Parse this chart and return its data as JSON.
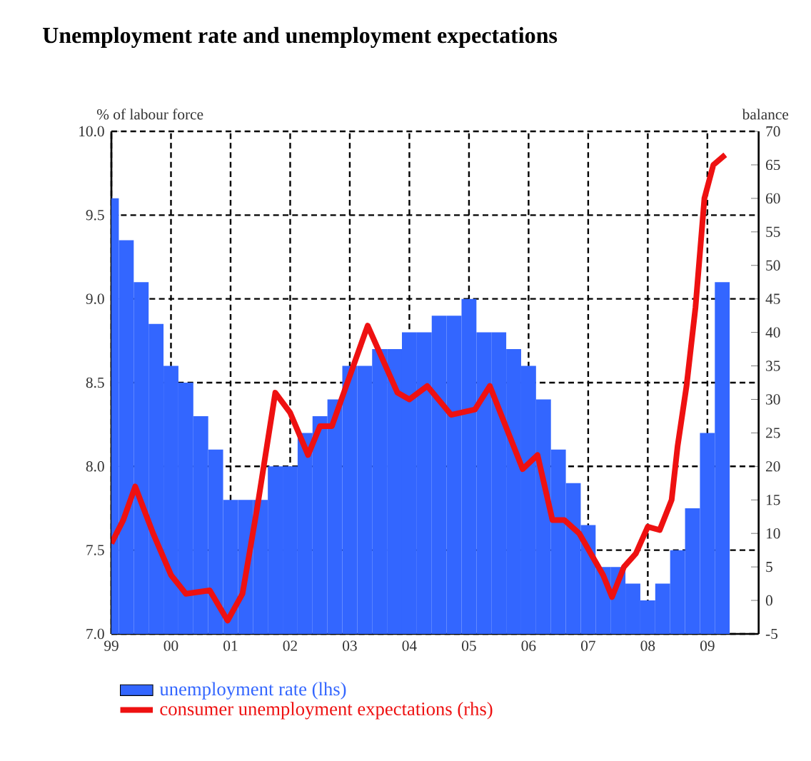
{
  "chart_data": {
    "type": "bar",
    "title": "Unemployment rate and unemployment expectations",
    "ylabel": "% of labour force",
    "y2label": "balance",
    "xlim": [
      1999,
      2009.86
    ],
    "xticks": [
      {
        "value": 1999,
        "label": "99"
      },
      {
        "value": 2000,
        "label": "00"
      },
      {
        "value": 2001,
        "label": "01"
      },
      {
        "value": 2002,
        "label": "02"
      },
      {
        "value": 2003,
        "label": "03"
      },
      {
        "value": 2004,
        "label": "04"
      },
      {
        "value": 2005,
        "label": "05"
      },
      {
        "value": 2006,
        "label": "06"
      },
      {
        "value": 2007,
        "label": "07"
      },
      {
        "value": 2008,
        "label": "08"
      },
      {
        "value": 2009,
        "label": "09"
      }
    ],
    "ylim": [
      7,
      10
    ],
    "yticks": [
      {
        "value": 7,
        "label": "7.0"
      },
      {
        "value": 7.5,
        "label": "7.5"
      },
      {
        "value": 8,
        "label": "8.0"
      },
      {
        "value": 8.5,
        "label": "8.5"
      },
      {
        "value": 9,
        "label": "9.0"
      },
      {
        "value": 9.5,
        "label": "9.5"
      },
      {
        "value": 10,
        "label": "10.0"
      }
    ],
    "y2lim": [
      -5,
      70
    ],
    "y2ticks": [
      -5,
      0,
      5,
      10,
      15,
      20,
      25,
      30,
      35,
      40,
      45,
      50,
      55,
      60,
      65,
      70
    ],
    "grid": true,
    "legend": "bottom",
    "series": [
      {
        "name": "unemployment rate (lhs)",
        "color": "#3366ff",
        "x": [
          1999,
          1999.25,
          1999.5,
          1999.75,
          2000,
          2000.25,
          2000.5,
          2000.75,
          2001,
          2001.25,
          2001.5,
          2001.75,
          2002,
          2002.25,
          2002.5,
          2002.75,
          2003,
          2003.25,
          2003.5,
          2003.75,
          2004,
          2004.25,
          2004.5,
          2004.75,
          2005,
          2005.25,
          2005.5,
          2005.75,
          2006,
          2006.25,
          2006.5,
          2006.75,
          2007,
          2007.25,
          2007.5,
          2007.75,
          2008,
          2008.25,
          2008.5,
          2008.75,
          2009,
          2009.25
        ],
        "values": [
          9.6,
          9.35,
          9.1,
          8.85,
          8.6,
          8.5,
          8.3,
          8.1,
          7.8,
          7.8,
          7.8,
          8.0,
          8.0,
          8.2,
          8.3,
          8.4,
          8.6,
          8.6,
          8.7,
          8.7,
          8.8,
          8.8,
          8.9,
          8.9,
          9.0,
          8.8,
          8.8,
          8.7,
          8.6,
          8.4,
          8.1,
          7.9,
          7.65,
          7.4,
          7.4,
          7.3,
          7.2,
          7.3,
          7.5,
          7.75,
          8.2,
          9.1
        ]
      },
      {
        "name": "consumer unemployment expectations (rhs)",
        "type": "line",
        "axis": "y2",
        "color": "#ee1111",
        "x": [
          1999,
          1999.2,
          1999.4,
          1999.7,
          2000,
          2000.25,
          2000.65,
          2000.95,
          2001.2,
          2001.45,
          2001.75,
          2002,
          2002.3,
          2002.5,
          2002.7,
          2003.3,
          2003.8,
          2004.0,
          2004.3,
          2004.7,
          2005.1,
          2005.35,
          2005.9,
          2006.15,
          2006.4,
          2006.6,
          2006.85,
          2007.25,
          2007.4,
          2007.6,
          2007.8,
          2008.0,
          2008.2,
          2008.4,
          2008.5,
          2008.65,
          2008.8,
          2008.95,
          2009.1,
          2009.3
        ],
        "values": [
          8.5,
          12,
          17,
          10,
          3.8,
          1,
          1.5,
          -3,
          1,
          14,
          31,
          28,
          21.7,
          26,
          26,
          41,
          31,
          30,
          32,
          27.7,
          28.5,
          32,
          19.6,
          21.7,
          12,
          12,
          10,
          3.8,
          0.5,
          5,
          7,
          11,
          10.5,
          15,
          23,
          32,
          43.7,
          60,
          65,
          66.5
        ]
      }
    ]
  }
}
